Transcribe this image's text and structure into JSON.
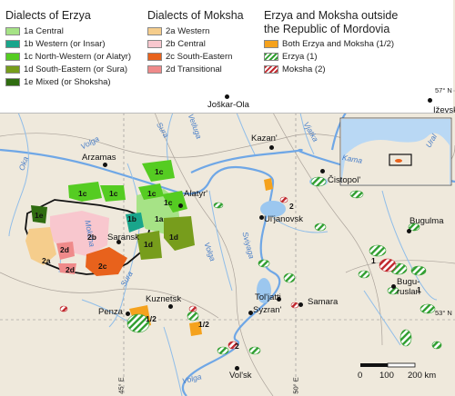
{
  "legend": {
    "erzya_title": "Dialects of Erzya",
    "moksha_title": "Dialects of Moksha",
    "outside_title_1": "Erzya and Moksha outside",
    "outside_title_2": "the Republic of Mordovia",
    "erzya_items": [
      {
        "label": "1a Central",
        "color": "#a6e386"
      },
      {
        "label": "1b Western (or Insar)",
        "color": "#19a58b"
      },
      {
        "label": "1c North-Western (or Alatyr)",
        "color": "#55cc22"
      },
      {
        "label": "1d South-Eastern (or Sura)",
        "color": "#779d1c"
      },
      {
        "label": "1e Mixed (or Shoksha)",
        "color": "#2f6c10"
      }
    ],
    "moksha_items": [
      {
        "label": "2a Western",
        "color": "#f5cd8c"
      },
      {
        "label": "2b Central",
        "color": "#f8c7ce"
      },
      {
        "label": "2c South-Eastern",
        "color": "#e8621c"
      },
      {
        "label": "2d Transitional",
        "color": "#ef8a8a"
      }
    ],
    "outside_items": [
      {
        "label": "Both Erzya and Moksha (1/2)",
        "color": "#f5a21d"
      },
      {
        "label": "Erzya (1)",
        "color": "#2f9e2f"
      },
      {
        "label": "Moksha (2)",
        "color": "#c0272d"
      }
    ]
  },
  "cities": [
    {
      "name": "Joškar-Ola"
    },
    {
      "name": "Kazan'"
    },
    {
      "name": "Čistopol'"
    },
    {
      "name": "Arzamas"
    },
    {
      "name": "Alatyr'"
    },
    {
      "name": "Bugulma"
    },
    {
      "name": "Ul'janovsk"
    },
    {
      "name": "Saransk"
    },
    {
      "name": "Bugu-"
    },
    {
      "name": "ruslan"
    },
    {
      "name": "Tol'jatti"
    },
    {
      "name": "Samara"
    },
    {
      "name": "Penza"
    },
    {
      "name": "Kuznetsk"
    },
    {
      "name": "Syzran'"
    },
    {
      "name": "Vol'sk"
    },
    {
      "name": "Iževsk"
    }
  ],
  "rivers": [
    {
      "name": "Volga"
    },
    {
      "name": "Sura"
    },
    {
      "name": "Vetluga"
    },
    {
      "name": "Vjatka"
    },
    {
      "name": "Oka"
    },
    {
      "name": "Sviyaga"
    },
    {
      "name": "Kama"
    },
    {
      "name": "Moksha"
    },
    {
      "name": "Volga"
    },
    {
      "name": "Sura"
    },
    {
      "name": "Volga"
    },
    {
      "name": "Ural"
    }
  ],
  "dialect_labels": [
    {
      "text": "1c"
    },
    {
      "text": "1c"
    },
    {
      "text": "1c"
    },
    {
      "text": "1c"
    },
    {
      "text": "1c"
    },
    {
      "text": "1a"
    },
    {
      "text": "1b"
    },
    {
      "text": "1d"
    },
    {
      "text": "1d"
    },
    {
      "text": "1e"
    },
    {
      "text": "2a"
    },
    {
      "text": "2b"
    },
    {
      "text": "2c"
    },
    {
      "text": "2d"
    },
    {
      "text": "2d"
    },
    {
      "text": "2"
    },
    {
      "text": "1"
    },
    {
      "text": "1"
    },
    {
      "text": "1/2"
    },
    {
      "text": "1/2"
    },
    {
      "text": "2"
    }
  ],
  "coordinates": [
    {
      "text": "57° N"
    },
    {
      "text": "53° N"
    },
    {
      "text": "45° E"
    },
    {
      "text": "50° E"
    }
  ],
  "scale": {
    "zero": "0",
    "mid": "100",
    "end": "200 km"
  }
}
